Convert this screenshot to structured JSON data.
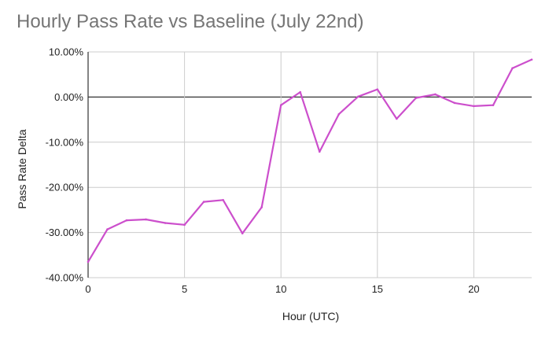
{
  "chart_data": {
    "type": "line",
    "title": "Hourly Pass Rate vs Baseline (July 22nd)",
    "xlabel": "Hour (UTC)",
    "ylabel": "Pass Rate Delta",
    "xlim": [
      0,
      23
    ],
    "ylim": [
      -40,
      10
    ],
    "x_ticks": [
      0,
      5,
      10,
      15,
      20
    ],
    "x_tick_labels": [
      "0",
      "5",
      "10",
      "15",
      "20"
    ],
    "y_ticks": [
      10,
      0,
      -10,
      -20,
      -30,
      -40
    ],
    "y_tick_labels": [
      "10.00%",
      "0.00%",
      "-10.00%",
      "-20.00%",
      "-30.00%",
      "-40.00%"
    ],
    "grid": true,
    "legend": "none",
    "series": [
      {
        "color": "#cc4fcc",
        "x": [
          0,
          1,
          2,
          3,
          4,
          5,
          6,
          7,
          8,
          9,
          10,
          11,
          12,
          13,
          14,
          15,
          16,
          17,
          18,
          19,
          20,
          21,
          22,
          23
        ],
        "y": [
          -36.5,
          -29.3,
          -27.3,
          -27.1,
          -27.9,
          -28.3,
          -23.2,
          -22.8,
          -30.2,
          -24.4,
          -1.8,
          1.1,
          -12.1,
          -3.8,
          0.1,
          1.7,
          -4.8,
          -0.2,
          0.6,
          -1.3,
          -2.0,
          -1.8,
          6.4,
          8.3
        ]
      }
    ]
  }
}
